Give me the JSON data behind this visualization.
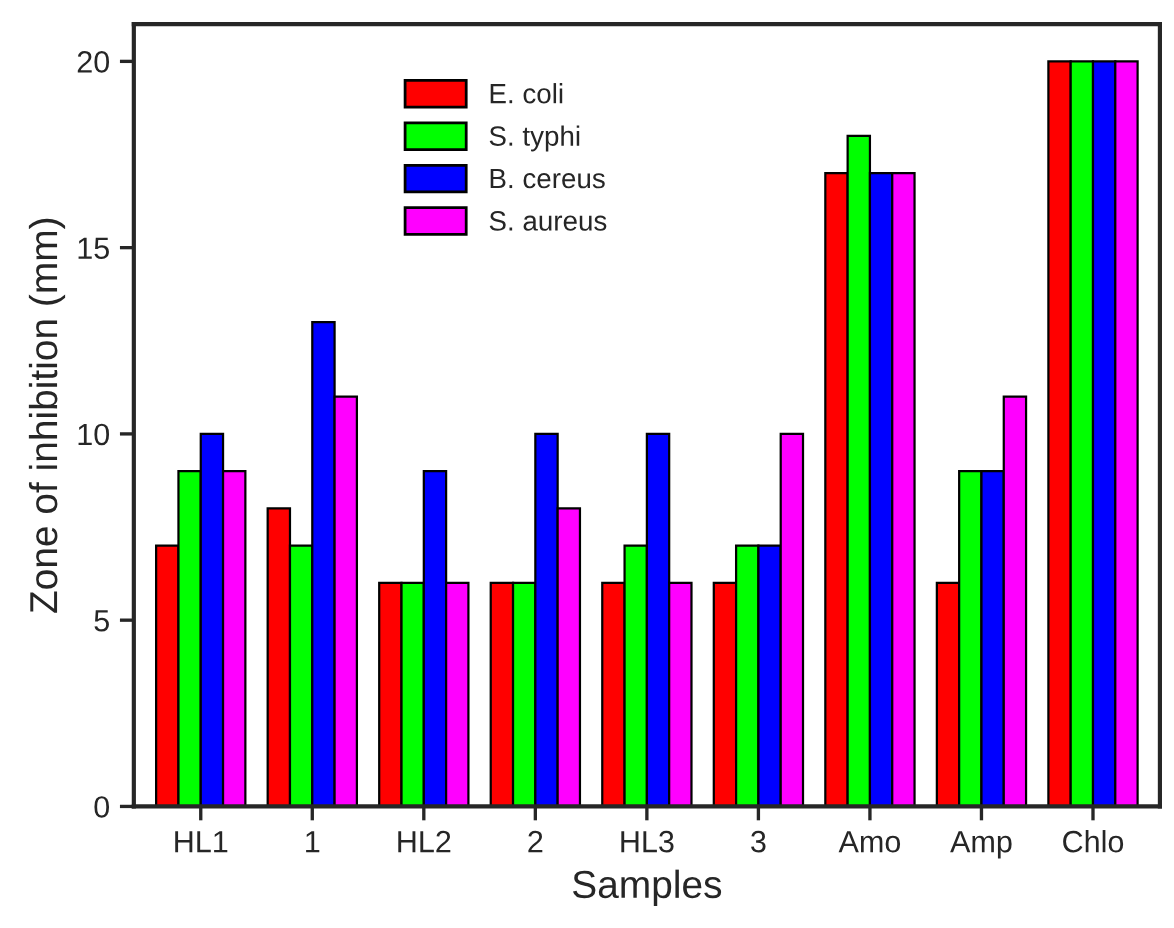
{
  "chart_data": {
    "type": "bar",
    "xlabel": "Samples",
    "ylabel": "Zone of inhibition (mm)",
    "categories": [
      "HL1",
      "1",
      "HL2",
      "2",
      "HL3",
      "3",
      "Amo",
      "Amp",
      "Chlo"
    ],
    "series": [
      {
        "name": "E. coli",
        "color": "#ff0000",
        "values": [
          7,
          8,
          6,
          6,
          6,
          6,
          17,
          6,
          20
        ]
      },
      {
        "name": "S. typhi",
        "color": "#00ff00",
        "values": [
          9,
          7,
          6,
          6,
          7,
          7,
          18,
          9,
          20
        ]
      },
      {
        "name": "B. cereus",
        "color": "#0000ff",
        "values": [
          10,
          13,
          9,
          10,
          10,
          7,
          17,
          9,
          20
        ]
      },
      {
        "name": "S. aureus",
        "color": "#ff00ff",
        "values": [
          9,
          11,
          6,
          8,
          6,
          10,
          17,
          11,
          20
        ]
      }
    ],
    "ylim": [
      0,
      21
    ],
    "yticks": [
      0,
      5,
      10,
      15,
      20
    ],
    "grid": false,
    "legend": "top left"
  }
}
